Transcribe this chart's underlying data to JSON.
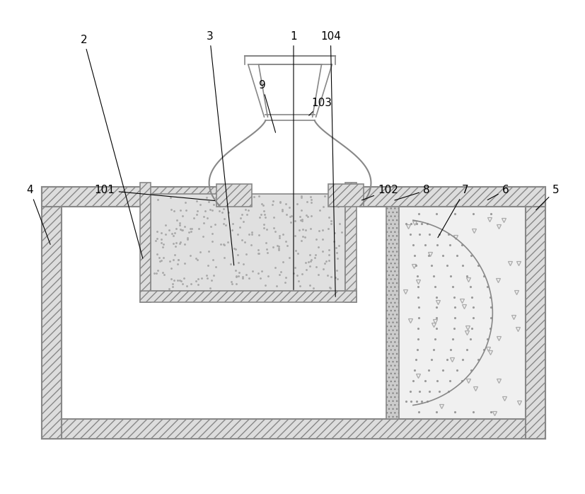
{
  "bg_color": "#ffffff",
  "lc": "#888888",
  "lc_dark": "#555555",
  "fill_hatch": "#dddddd",
  "fill_light": "#e8e8e8",
  "fill_right": "#f0f0f0",
  "fill_dot": "#d8d8d8"
}
